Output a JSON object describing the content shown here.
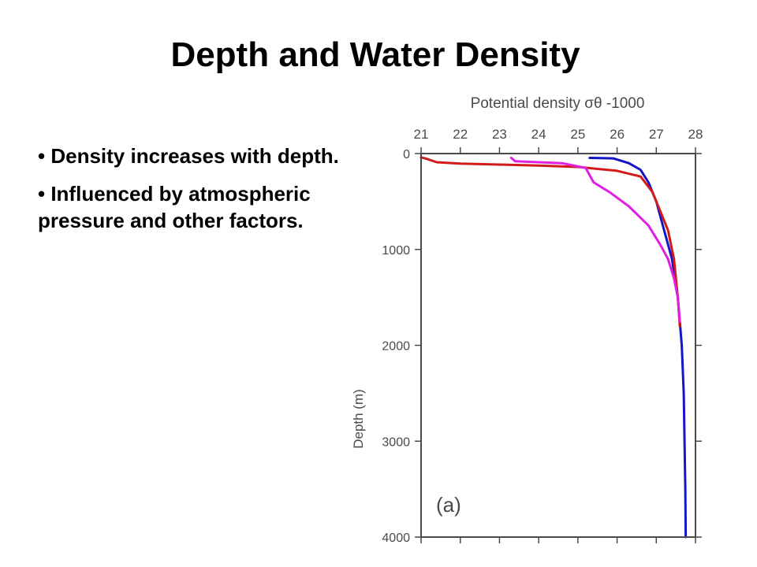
{
  "slide": {
    "title": "Depth and Water Density",
    "bullets": [
      "Density increases with depth.",
      "Influenced by atmospheric pressure and other factors."
    ]
  },
  "chart_data": {
    "type": "line",
    "title": "Potential density σθ -1000",
    "xlabel": "Potential density σθ -1000",
    "ylabel": "Depth (m)",
    "panel_label": "(a)",
    "x_axis_position": "top",
    "y_axis_inverted": true,
    "xlim": [
      21,
      28
    ],
    "ylim": [
      0,
      4000
    ],
    "xticks": [
      21,
      22,
      23,
      24,
      25,
      26,
      27,
      28
    ],
    "yticks": [
      0,
      1000,
      2000,
      3000,
      4000
    ],
    "grid": false,
    "series": [
      {
        "color": "#1515c8",
        "points": [
          [
            25.3,
            45
          ],
          [
            25.9,
            50
          ],
          [
            26.3,
            100
          ],
          [
            26.6,
            170
          ],
          [
            26.8,
            300
          ],
          [
            27.0,
            500
          ],
          [
            27.2,
            800
          ],
          [
            27.4,
            1100
          ],
          [
            27.55,
            1500
          ],
          [
            27.65,
            2000
          ],
          [
            27.7,
            2500
          ],
          [
            27.72,
            3000
          ],
          [
            27.74,
            3500
          ],
          [
            27.75,
            4000
          ]
        ]
      },
      {
        "color": "#d21a1a",
        "points": [
          [
            21.0,
            40
          ],
          [
            21.1,
            50
          ],
          [
            21.4,
            90
          ],
          [
            22.0,
            105
          ],
          [
            23.0,
            115
          ],
          [
            24.0,
            125
          ],
          [
            25.0,
            140
          ],
          [
            26.0,
            180
          ],
          [
            26.6,
            240
          ],
          [
            26.9,
            400
          ],
          [
            27.1,
            600
          ],
          [
            27.3,
            800
          ],
          [
            27.45,
            1100
          ],
          [
            27.55,
            1500
          ],
          [
            27.6,
            1800
          ]
        ]
      },
      {
        "color": "#e020e0",
        "points": [
          [
            23.3,
            45
          ],
          [
            23.4,
            80
          ],
          [
            24.0,
            90
          ],
          [
            24.6,
            100
          ],
          [
            25.2,
            150
          ],
          [
            25.4,
            300
          ],
          [
            25.8,
            400
          ],
          [
            26.3,
            550
          ],
          [
            26.8,
            750
          ],
          [
            27.1,
            950
          ],
          [
            27.3,
            1100
          ],
          [
            27.45,
            1300
          ],
          [
            27.55,
            1500
          ],
          [
            27.6,
            1750
          ]
        ]
      }
    ]
  }
}
